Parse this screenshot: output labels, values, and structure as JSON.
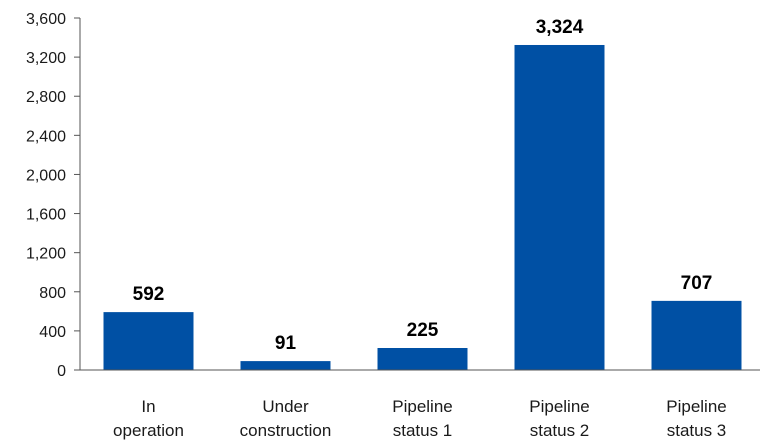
{
  "chart_data": {
    "type": "bar",
    "categories": [
      [
        "In",
        "operation"
      ],
      [
        "Under",
        "construction"
      ],
      [
        "Pipeline",
        "status 1"
      ],
      [
        "Pipeline",
        "status 2"
      ],
      [
        "Pipeline",
        "status 3"
      ]
    ],
    "values": [
      592,
      91,
      225,
      3324,
      707
    ],
    "data_labels": [
      "592",
      "91",
      "225",
      "3,324",
      "707"
    ],
    "yticks": [
      0,
      400,
      800,
      1200,
      1600,
      2000,
      2400,
      2800,
      3200,
      3600
    ],
    "ytick_labels": [
      "0",
      "400",
      "800",
      "1,200",
      "1,600",
      "2,000",
      "2,400",
      "2,800",
      "3,200",
      "3,600"
    ],
    "ylim": [
      0,
      3600
    ],
    "grid": false,
    "bar_color": "#0050a4"
  }
}
